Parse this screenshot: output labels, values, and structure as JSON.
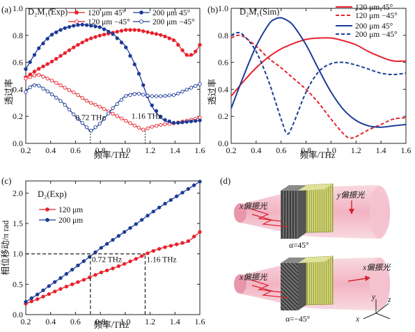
{
  "chart_data": [
    {
      "panel": "(a)",
      "type": "line",
      "title": "D₂M₁(Exp)",
      "xlabel": "频率/THz",
      "ylabel": "透过率",
      "xlim": [
        0.2,
        1.6
      ],
      "ylim": [
        0.0,
        1.0
      ],
      "xticks": [
        "0.2",
        "0.4",
        "0.6",
        "0.8",
        "1.0",
        "1.2",
        "1.4",
        "1.6"
      ],
      "yticks": [
        "0.0",
        "0.2",
        "0.4",
        "0.6",
        "0.8",
        "1.0"
      ],
      "annotations": [
        "0.72 THz",
        "1.16 THz"
      ],
      "series": [
        {
          "name": "120 μm 45°",
          "color": "#e8212b",
          "dash": false,
          "marker": "filled",
          "x": [
            0.2,
            0.3,
            0.4,
            0.5,
            0.6,
            0.7,
            0.8,
            0.9,
            1.0,
            1.1,
            1.2,
            1.3,
            1.4,
            1.45,
            1.5,
            1.55,
            1.6
          ],
          "y": [
            0.49,
            0.55,
            0.6,
            0.66,
            0.72,
            0.77,
            0.8,
            0.82,
            0.84,
            0.84,
            0.82,
            0.8,
            0.76,
            0.7,
            0.65,
            0.66,
            0.73
          ]
        },
        {
          "name": "120 μm −45°",
          "color": "#e8212b",
          "dash": false,
          "marker": "open",
          "x": [
            0.2,
            0.3,
            0.4,
            0.5,
            0.6,
            0.7,
            0.8,
            0.9,
            1.0,
            1.1,
            1.15,
            1.2,
            1.3,
            1.4,
            1.5,
            1.6
          ],
          "y": [
            0.48,
            0.51,
            0.47,
            0.42,
            0.37,
            0.31,
            0.27,
            0.22,
            0.17,
            0.12,
            0.1,
            0.12,
            0.14,
            0.15,
            0.17,
            0.19
          ]
        },
        {
          "name": "200 μm 45°",
          "color": "#1c3b96",
          "dash": false,
          "marker": "filled",
          "x": [
            0.2,
            0.3,
            0.4,
            0.5,
            0.6,
            0.65,
            0.7,
            0.8,
            0.9,
            1.0,
            1.1,
            1.2,
            1.3,
            1.4,
            1.5,
            1.6
          ],
          "y": [
            0.55,
            0.7,
            0.8,
            0.85,
            0.875,
            0.88,
            0.875,
            0.86,
            0.81,
            0.72,
            0.54,
            0.3,
            0.18,
            0.15,
            0.16,
            0.17
          ]
        },
        {
          "name": "200 μm −45°",
          "color": "#1c3b96",
          "dash": false,
          "marker": "open",
          "x": [
            0.2,
            0.25,
            0.3,
            0.4,
            0.5,
            0.6,
            0.7,
            0.72,
            0.8,
            0.9,
            1.0,
            1.1,
            1.2,
            1.3,
            1.4,
            1.5,
            1.6
          ],
          "y": [
            0.38,
            0.43,
            0.43,
            0.37,
            0.3,
            0.2,
            0.11,
            0.09,
            0.15,
            0.26,
            0.35,
            0.37,
            0.35,
            0.35,
            0.36,
            0.4,
            0.44
          ]
        }
      ]
    },
    {
      "panel": "(b)",
      "type": "line",
      "title": "D₂M₁(Sim)",
      "xlabel": "频率/THz",
      "ylabel": "透过率",
      "xlim": [
        0.2,
        1.6
      ],
      "ylim": [
        0.0,
        1.0
      ],
      "xticks": [
        "0.2",
        "0.4",
        "0.6",
        "0.8",
        "1.0",
        "1.2",
        "1.4",
        "1.6"
      ],
      "yticks": [
        "0.0",
        "0.2",
        "0.4",
        "0.6",
        "0.8",
        "1.0"
      ],
      "series": [
        {
          "name": "120 μm 45°",
          "color": "#e8212b",
          "dash": false,
          "x": [
            0.2,
            0.3,
            0.4,
            0.5,
            0.6,
            0.7,
            0.8,
            0.9,
            1.0,
            1.1,
            1.2,
            1.3,
            1.4,
            1.5,
            1.6
          ],
          "y": [
            0.35,
            0.46,
            0.56,
            0.64,
            0.7,
            0.74,
            0.77,
            0.78,
            0.78,
            0.76,
            0.73,
            0.68,
            0.64,
            0.61,
            0.61
          ]
        },
        {
          "name": "120 μm −45°",
          "color": "#e8212b",
          "dash": true,
          "x": [
            0.2,
            0.25,
            0.3,
            0.4,
            0.5,
            0.6,
            0.7,
            0.8,
            0.9,
            1.0,
            1.1,
            1.15,
            1.2,
            1.3,
            1.4,
            1.5,
            1.6
          ],
          "y": [
            0.78,
            0.8,
            0.79,
            0.72,
            0.63,
            0.56,
            0.48,
            0.4,
            0.3,
            0.18,
            0.07,
            0.04,
            0.05,
            0.1,
            0.14,
            0.18,
            0.19
          ]
        },
        {
          "name": "200 μm 45°",
          "color": "#1c3b96",
          "dash": false,
          "x": [
            0.2,
            0.3,
            0.4,
            0.5,
            0.55,
            0.6,
            0.65,
            0.7,
            0.8,
            0.9,
            1.0,
            1.1,
            1.2,
            1.3,
            1.4,
            1.5,
            1.6
          ],
          "y": [
            0.26,
            0.5,
            0.72,
            0.88,
            0.92,
            0.93,
            0.91,
            0.87,
            0.73,
            0.55,
            0.38,
            0.25,
            0.17,
            0.13,
            0.12,
            0.13,
            0.14
          ]
        },
        {
          "name": "200 μm −45°",
          "color": "#1c3b96",
          "dash": true,
          "x": [
            0.2,
            0.25,
            0.3,
            0.4,
            0.5,
            0.6,
            0.65,
            0.7,
            0.8,
            0.9,
            1.0,
            1.1,
            1.2,
            1.3,
            1.4,
            1.5,
            1.6
          ],
          "y": [
            0.8,
            0.82,
            0.8,
            0.68,
            0.46,
            0.18,
            0.07,
            0.15,
            0.38,
            0.53,
            0.59,
            0.6,
            0.58,
            0.55,
            0.52,
            0.51,
            0.52
          ]
        }
      ]
    },
    {
      "panel": "(c)",
      "type": "line",
      "title": "D₂(Exp)",
      "xlabel": "频率/THz",
      "ylabel": "相位移动/π rad",
      "xlim": [
        0.2,
        1.6
      ],
      "ylim": [
        0.0,
        2.2
      ],
      "xticks": [
        "0.2",
        "0.4",
        "0.6",
        "0.8",
        "1.0",
        "1.2",
        "1.4",
        "1.6"
      ],
      "yticks": [
        "0.0",
        "0.5",
        "1.0",
        "1.5",
        "2.0"
      ],
      "annotations": [
        "0.72 THz",
        "1.16 THz"
      ],
      "series": [
        {
          "name": "120 μm",
          "color": "#e8212b",
          "dash": false,
          "marker": "filled",
          "x": [
            0.2,
            0.3,
            0.4,
            0.5,
            0.6,
            0.7,
            0.8,
            0.9,
            1.0,
            1.1,
            1.2,
            1.3,
            1.4,
            1.5,
            1.6
          ],
          "y": [
            0.18,
            0.26,
            0.35,
            0.44,
            0.52,
            0.6,
            0.69,
            0.76,
            0.84,
            0.93,
            1.03,
            1.1,
            1.15,
            1.2,
            1.36
          ]
        },
        {
          "name": "200 μm",
          "color": "#1c3b96",
          "dash": false,
          "marker": "filled",
          "x": [
            0.2,
            0.3,
            0.4,
            0.5,
            0.6,
            0.7,
            0.8,
            0.9,
            1.0,
            1.1,
            1.2,
            1.3,
            1.4,
            1.5,
            1.6
          ],
          "y": [
            0.21,
            0.34,
            0.49,
            0.63,
            0.78,
            0.93,
            1.09,
            1.23,
            1.37,
            1.51,
            1.66,
            1.8,
            1.93,
            2.06,
            2.19
          ]
        }
      ]
    }
  ],
  "diagram": {
    "panel": "(d)",
    "x_pol": "x偏振光",
    "y_pol": "y偏振光",
    "alpha_top": "α=45°",
    "alpha_bottom": "α=−45°",
    "axes": [
      "x",
      "y",
      "z"
    ]
  }
}
